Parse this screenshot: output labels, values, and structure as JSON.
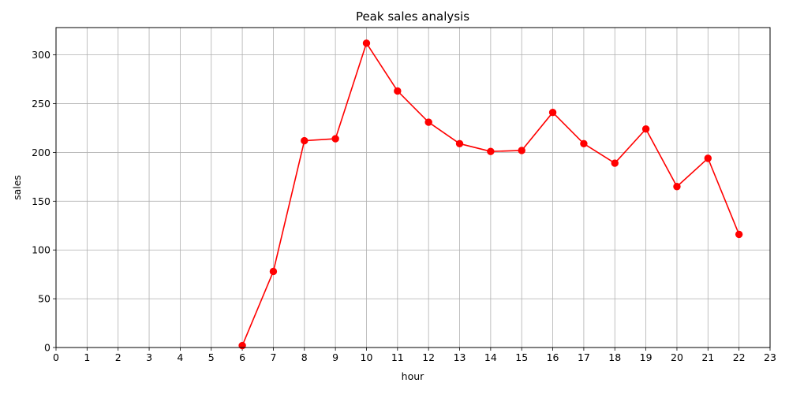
{
  "chart_data": {
    "type": "line",
    "title": "Peak sales analysis",
    "xlabel": "hour",
    "ylabel": "sales",
    "xlim": [
      0,
      23
    ],
    "ylim": [
      0,
      328
    ],
    "xticks": [
      "0",
      "1",
      "2",
      "3",
      "4",
      "5",
      "6",
      "7",
      "8",
      "9",
      "10",
      "11",
      "12",
      "13",
      "14",
      "15",
      "16",
      "17",
      "18",
      "19",
      "20",
      "21",
      "22",
      "23"
    ],
    "yticks": [
      "0",
      "50",
      "100",
      "150",
      "200",
      "250",
      "300"
    ],
    "grid": true,
    "series": [
      {
        "color": "#ff0000",
        "marker": "circle",
        "x": [
          6,
          7,
          8,
          9,
          10,
          11,
          12,
          13,
          14,
          15,
          16,
          17,
          18,
          19,
          20,
          21,
          22
        ],
        "y": [
          2,
          78,
          212,
          214,
          312,
          263,
          231,
          209,
          201,
          202,
          241,
          209,
          189,
          224,
          165,
          194,
          116
        ]
      }
    ]
  }
}
